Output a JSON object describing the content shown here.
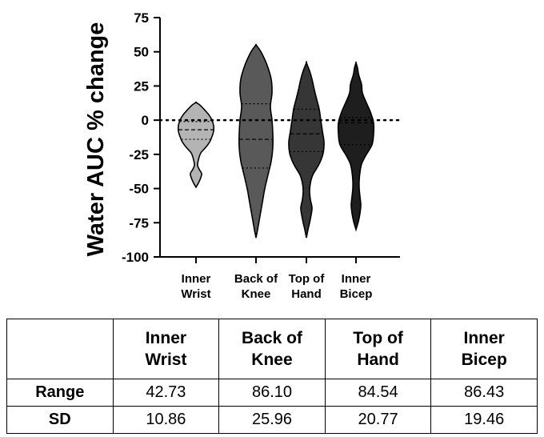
{
  "chart_data": {
    "type": "violin",
    "ylabel": "Water AUC % change",
    "ylim": [
      -100,
      75
    ],
    "yticks": [
      75,
      50,
      25,
      0,
      -25,
      -50,
      -75,
      -100
    ],
    "reference_line_y": 0,
    "categories": [
      {
        "line1": "Inner",
        "line2": "Wrist"
      },
      {
        "line1": "Back of",
        "line2": "Knee"
      },
      {
        "line1": "Top of",
        "line2": "Hand"
      },
      {
        "line1": "Inner",
        "line2": "Bicep"
      }
    ],
    "series": [
      {
        "color": "#b4b4b4",
        "min": -49,
        "max": 13,
        "q1": -14,
        "median": -7,
        "q3": -1,
        "profile": [
          [
            -49,
            0
          ],
          [
            -46,
            3
          ],
          [
            -42,
            6
          ],
          [
            -39,
            7
          ],
          [
            -36,
            4
          ],
          [
            -33,
            2
          ],
          [
            -29,
            3
          ],
          [
            -24,
            6
          ],
          [
            -20,
            12
          ],
          [
            -16,
            17
          ],
          [
            -12,
            20
          ],
          [
            -8,
            22
          ],
          [
            -4,
            22
          ],
          [
            0,
            20
          ],
          [
            4,
            16
          ],
          [
            8,
            10
          ],
          [
            11,
            5
          ],
          [
            13,
            0
          ]
        ]
      },
      {
        "color": "#595959",
        "min": -86,
        "max": 55,
        "q1": -35,
        "median": -14,
        "q3": 12,
        "profile": [
          [
            -86,
            0
          ],
          [
            -80,
            2
          ],
          [
            -70,
            5
          ],
          [
            -60,
            8
          ],
          [
            -50,
            11
          ],
          [
            -40,
            15
          ],
          [
            -30,
            19
          ],
          [
            -20,
            21
          ],
          [
            -10,
            21
          ],
          [
            0,
            20
          ],
          [
            10,
            18
          ],
          [
            20,
            20
          ],
          [
            30,
            19
          ],
          [
            40,
            14
          ],
          [
            48,
            8
          ],
          [
            52,
            4
          ],
          [
            55,
            0
          ]
        ]
      },
      {
        "color": "#363636",
        "min": -86,
        "max": 42,
        "q1": -23,
        "median": -10,
        "q3": 8,
        "profile": [
          [
            -86,
            0
          ],
          [
            -80,
            2
          ],
          [
            -75,
            4
          ],
          [
            -69,
            6
          ],
          [
            -64,
            7
          ],
          [
            -58,
            5
          ],
          [
            -52,
            4
          ],
          [
            -46,
            5
          ],
          [
            -40,
            8
          ],
          [
            -32,
            16
          ],
          [
            -24,
            21
          ],
          [
            -16,
            22
          ],
          [
            -8,
            20
          ],
          [
            0,
            18
          ],
          [
            8,
            16
          ],
          [
            15,
            13
          ],
          [
            22,
            10
          ],
          [
            30,
            7
          ],
          [
            36,
            4
          ],
          [
            42,
            0
          ]
        ]
      },
      {
        "color": "#1e1e1e",
        "min": -80,
        "max": 42,
        "q1": -18,
        "median": -2,
        "q3": 2,
        "profile": [
          [
            -80,
            0
          ],
          [
            -74,
            3
          ],
          [
            -68,
            5
          ],
          [
            -62,
            6
          ],
          [
            -56,
            5
          ],
          [
            -50,
            4
          ],
          [
            -44,
            4
          ],
          [
            -38,
            5
          ],
          [
            -32,
            7
          ],
          [
            -26,
            12
          ],
          [
            -18,
            20
          ],
          [
            -10,
            22
          ],
          [
            -2,
            22
          ],
          [
            6,
            18
          ],
          [
            14,
            12
          ],
          [
            20,
            8
          ],
          [
            26,
            7
          ],
          [
            30,
            5
          ],
          [
            34,
            3
          ],
          [
            38,
            2
          ],
          [
            42,
            0
          ]
        ]
      }
    ]
  },
  "table": {
    "headers": [
      {
        "line1": "Inner",
        "line2": "Wrist"
      },
      {
        "line1": "Back of",
        "line2": "Knee"
      },
      {
        "line1": "Top of",
        "line2": "Hand"
      },
      {
        "line1": "Inner",
        "line2": "Bicep"
      }
    ],
    "rows": [
      {
        "label": "Range",
        "values": [
          "42.73",
          "86.10",
          "84.54",
          "86.43"
        ]
      },
      {
        "label": "SD",
        "values": [
          "10.86",
          "25.96",
          "20.77",
          "19.46"
        ]
      }
    ]
  }
}
